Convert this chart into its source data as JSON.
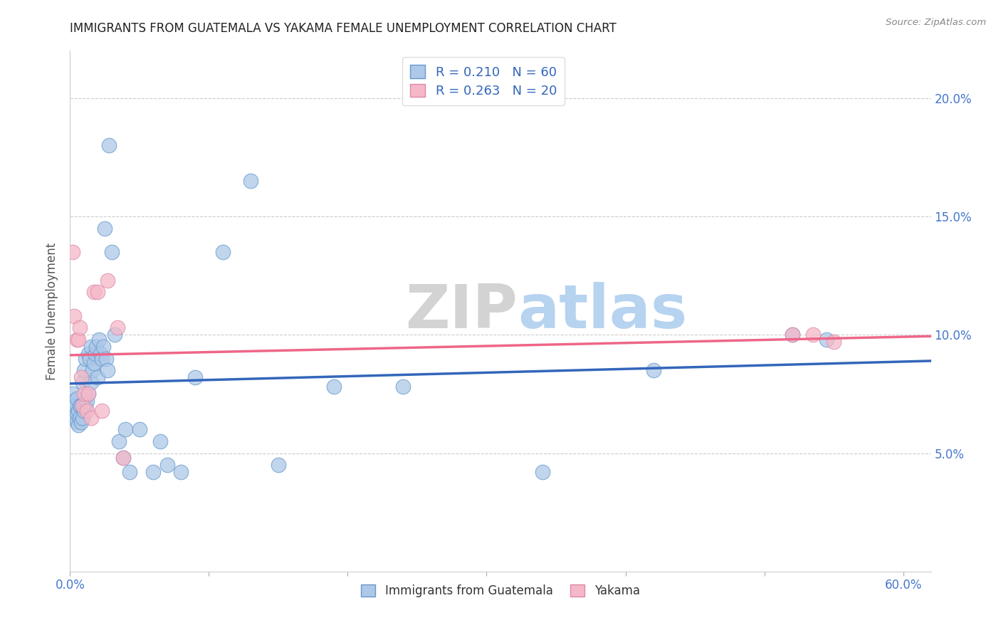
{
  "title": "IMMIGRANTS FROM GUATEMALA VS YAKAMA FEMALE UNEMPLOYMENT CORRELATION CHART",
  "source": "Source: ZipAtlas.com",
  "ylabel": "Female Unemployment",
  "xlim": [
    0.0,
    0.62
  ],
  "ylim": [
    0.0,
    0.22
  ],
  "yticks": [
    0.05,
    0.1,
    0.15,
    0.2
  ],
  "ytick_labels": [
    "5.0%",
    "10.0%",
    "15.0%",
    "20.0%"
  ],
  "R_blue": 0.21,
  "N_blue": 60,
  "R_pink": 0.263,
  "N_pink": 20,
  "blue_color": "#adc8e8",
  "pink_color": "#f5b8c8",
  "blue_edge_color": "#6699cc",
  "pink_edge_color": "#dd88aa",
  "blue_line_color": "#3366bb",
  "pink_line_color": "#ee6688",
  "watermark_zip": "ZIP",
  "watermark_atlas": "atlas",
  "blue_points_x": [
    0.002,
    0.003,
    0.003,
    0.004,
    0.004,
    0.005,
    0.005,
    0.005,
    0.006,
    0.006,
    0.007,
    0.007,
    0.008,
    0.008,
    0.009,
    0.009,
    0.01,
    0.01,
    0.011,
    0.011,
    0.012,
    0.013,
    0.013,
    0.014,
    0.015,
    0.015,
    0.016,
    0.017,
    0.018,
    0.019,
    0.02,
    0.021,
    0.022,
    0.023,
    0.024,
    0.025,
    0.026,
    0.027,
    0.028,
    0.03,
    0.032,
    0.035,
    0.038,
    0.04,
    0.043,
    0.05,
    0.06,
    0.065,
    0.07,
    0.08,
    0.09,
    0.11,
    0.13,
    0.15,
    0.19,
    0.24,
    0.34,
    0.42,
    0.52,
    0.545
  ],
  "blue_points_y": [
    0.075,
    0.068,
    0.072,
    0.065,
    0.07,
    0.063,
    0.067,
    0.073,
    0.062,
    0.068,
    0.065,
    0.07,
    0.063,
    0.07,
    0.065,
    0.08,
    0.068,
    0.085,
    0.07,
    0.09,
    0.072,
    0.075,
    0.092,
    0.09,
    0.08,
    0.095,
    0.085,
    0.088,
    0.092,
    0.095,
    0.082,
    0.098,
    0.092,
    0.09,
    0.095,
    0.145,
    0.09,
    0.085,
    0.18,
    0.135,
    0.1,
    0.055,
    0.048,
    0.06,
    0.042,
    0.06,
    0.042,
    0.055,
    0.045,
    0.042,
    0.082,
    0.135,
    0.165,
    0.045,
    0.078,
    0.078,
    0.042,
    0.085,
    0.1,
    0.098
  ],
  "pink_points_x": [
    0.002,
    0.003,
    0.005,
    0.006,
    0.007,
    0.008,
    0.009,
    0.01,
    0.012,
    0.013,
    0.015,
    0.017,
    0.02,
    0.023,
    0.027,
    0.034,
    0.038,
    0.52,
    0.535,
    0.55
  ],
  "pink_points_y": [
    0.135,
    0.108,
    0.098,
    0.098,
    0.103,
    0.082,
    0.07,
    0.075,
    0.068,
    0.075,
    0.065,
    0.118,
    0.118,
    0.068,
    0.123,
    0.103,
    0.048,
    0.1,
    0.1,
    0.097
  ]
}
